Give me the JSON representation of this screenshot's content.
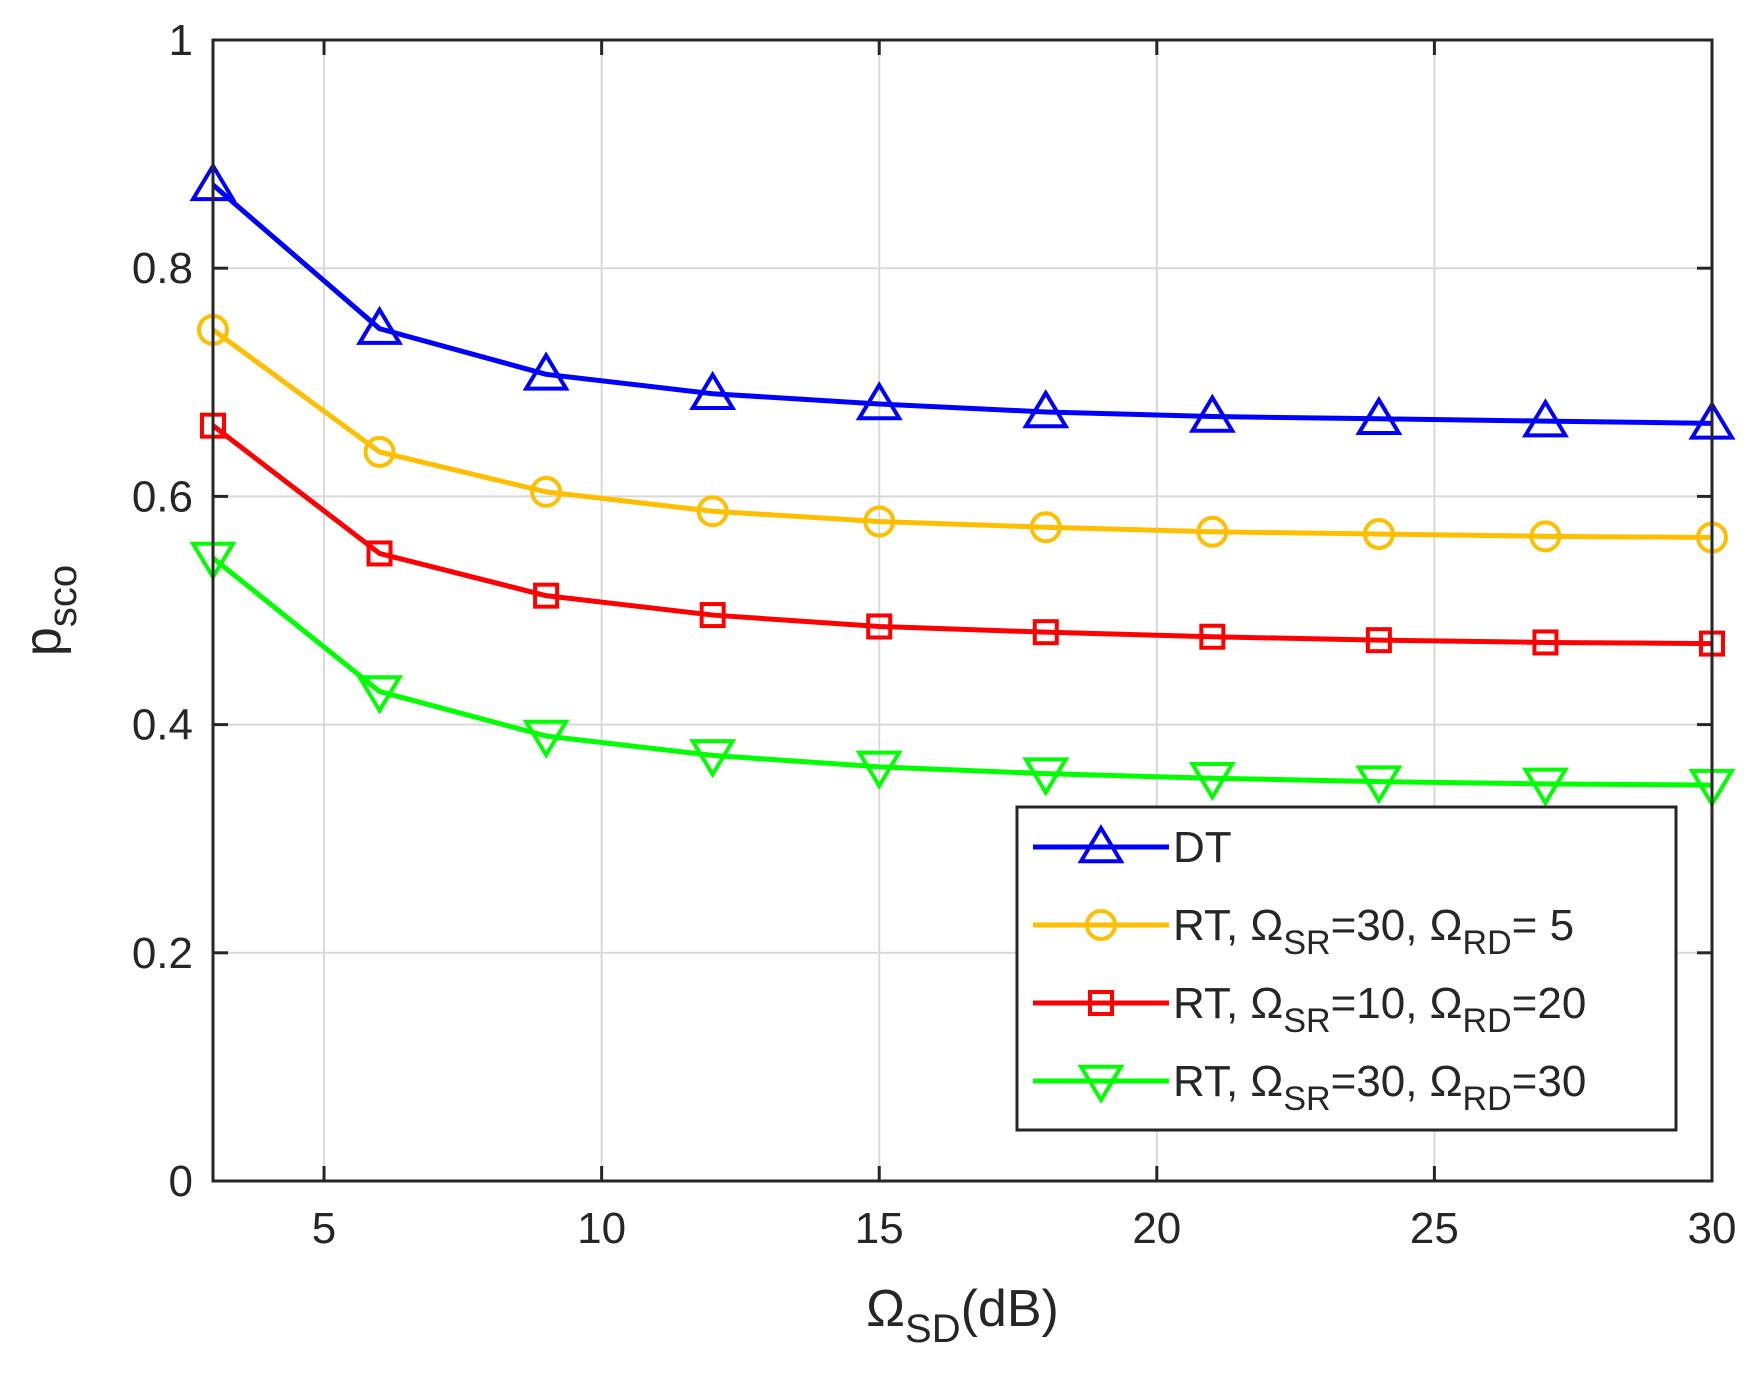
{
  "chart_data": {
    "type": "line",
    "title": "",
    "xlabel": {
      "main": "Ω",
      "sub": "SD",
      "suffix": "(dB)"
    },
    "ylabel": {
      "main": "p",
      "sub": "sco"
    },
    "xlim": [
      3,
      30
    ],
    "ylim": [
      0,
      1
    ],
    "grid": true,
    "legend_position": "bottom-right",
    "x": [
      3,
      6,
      9,
      12,
      15,
      18,
      21,
      24,
      27,
      30
    ],
    "xticks": [
      5,
      10,
      15,
      20,
      25,
      30
    ],
    "xtick_labels": [
      "5",
      "10",
      "15",
      "20",
      "25",
      "30"
    ],
    "yticks": [
      0,
      0.2,
      0.4,
      0.6,
      0.8,
      1
    ],
    "ytick_labels": [
      "0",
      "0.2",
      "0.4",
      "0.6",
      "0.8",
      "1"
    ],
    "series": [
      {
        "name": "DT",
        "legend_parts": [
          {
            "t": "DT"
          }
        ],
        "color": "#0000ff",
        "marker": "triangle-up",
        "values": [
          0.873,
          0.747,
          0.707,
          0.69,
          0.681,
          0.674,
          0.67,
          0.668,
          0.666,
          0.664
        ]
      },
      {
        "name": "RT, ΩSR=30, ΩRD= 5",
        "legend_parts": [
          {
            "t": "RT,  Ω"
          },
          {
            "s": "SR"
          },
          {
            "t": "=30, Ω"
          },
          {
            "s": "RD"
          },
          {
            "t": "= 5"
          }
        ],
        "color": "#ffbf00",
        "marker": "circle",
        "values": [
          0.746,
          0.639,
          0.604,
          0.587,
          0.578,
          0.573,
          0.569,
          0.567,
          0.565,
          0.564
        ]
      },
      {
        "name": "RT, ΩSR=10, ΩRD=20",
        "legend_parts": [
          {
            "t": "RT,  Ω"
          },
          {
            "s": "SR"
          },
          {
            "t": "=10, Ω"
          },
          {
            "s": "RD"
          },
          {
            "t": "=20"
          }
        ],
        "color": "#ff0000",
        "marker": "square",
        "values": [
          0.662,
          0.55,
          0.513,
          0.496,
          0.486,
          0.481,
          0.477,
          0.474,
          0.472,
          0.471
        ]
      },
      {
        "name": "RT, ΩSR=30, ΩRD=30",
        "legend_parts": [
          {
            "t": "RT,  Ω"
          },
          {
            "s": "SR"
          },
          {
            "t": "=30, Ω"
          },
          {
            "s": "RD"
          },
          {
            "t": "=30"
          }
        ],
        "color": "#00ff00",
        "marker": "triangle-down",
        "values": [
          0.546,
          0.429,
          0.39,
          0.373,
          0.363,
          0.357,
          0.353,
          0.35,
          0.348,
          0.347
        ]
      }
    ]
  }
}
